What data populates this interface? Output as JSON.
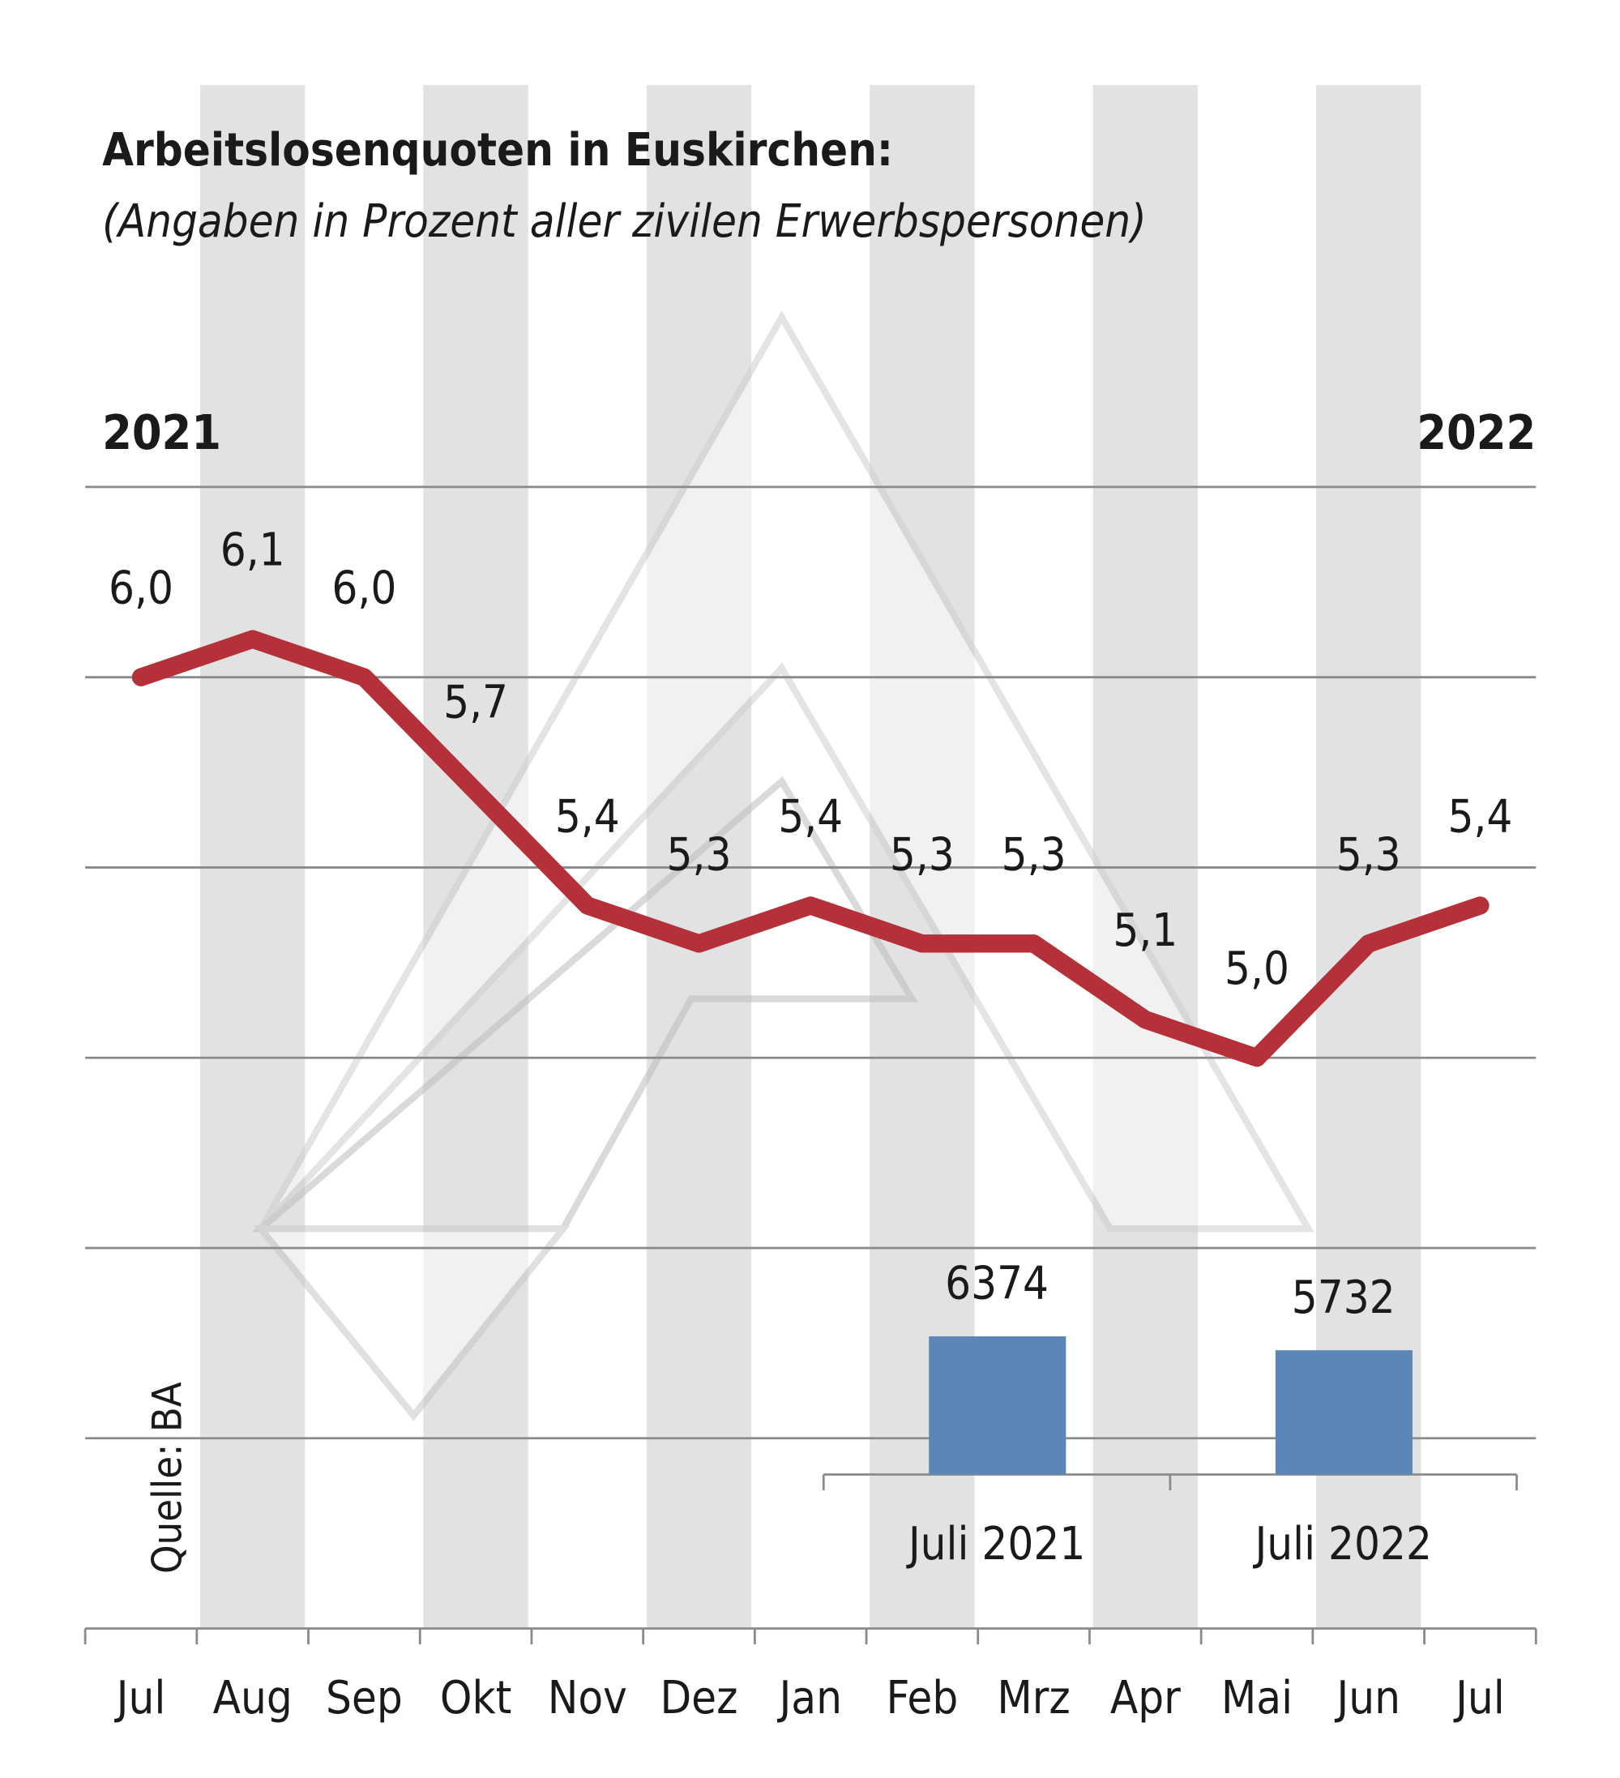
{
  "chart_data": [
    {
      "type": "line",
      "title": "Arbeitslosenquoten in Euskirchen:",
      "subtitle": "(Angaben in Prozent aller zivilen Erwerbspersonen)",
      "annotations": [
        "2021",
        "2022"
      ],
      "source": "Quelle: BA",
      "categories": [
        "Jul",
        "Aug",
        "Sep",
        "Okt",
        "Nov",
        "Dez",
        "Jan",
        "Feb",
        "Mrz",
        "Apr",
        "Mai",
        "Jun",
        "Jul"
      ],
      "values": [
        6.0,
        6.1,
        6.0,
        5.7,
        5.4,
        5.3,
        5.4,
        5.3,
        5.3,
        5.1,
        5.0,
        5.3,
        5.4
      ],
      "value_labels": [
        "6,0",
        "6,1",
        "6,0",
        "5,7",
        "5,4",
        "5,3",
        "5,4",
        "5,3",
        "5,3",
        "5,1",
        "5,0",
        "5,3",
        "5,4"
      ],
      "color": "#b5313a",
      "ylim": [
        3.5,
        6.5
      ],
      "yticks": [
        4,
        4.5,
        5,
        5.5,
        6,
        6.5
      ],
      "grid": true
    },
    {
      "type": "bar",
      "categories": [
        "Juli 2021",
        "Juli 2022"
      ],
      "values": [
        6374,
        5732
      ],
      "color": "#5b87b8",
      "ylim": [
        0,
        6400
      ]
    }
  ]
}
